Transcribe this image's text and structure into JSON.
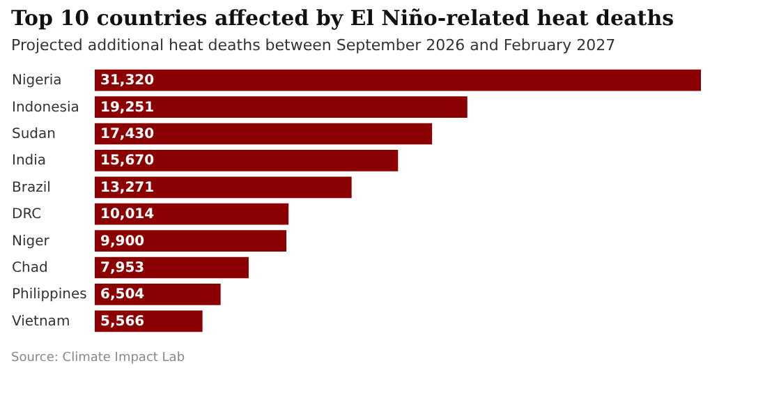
{
  "chart_data": {
    "type": "bar",
    "orientation": "horizontal",
    "title": "Top 10 countries affected by El Niño-related heat deaths",
    "subtitle": "Projected additional heat deaths between September 2026 and February 2027",
    "categories": [
      "Nigeria",
      "Indonesia",
      "Sudan",
      "India",
      "Brazil",
      "DRC",
      "Niger",
      "Chad",
      "Philippines",
      "Vietnam"
    ],
    "values": [
      31320,
      19251,
      17430,
      15670,
      13271,
      10014,
      9900,
      7953,
      6504,
      5566
    ],
    "value_labels": [
      "31,320",
      "19,251",
      "17,430",
      "15,670",
      "13,271",
      "10,014",
      "9,900",
      "7,953",
      "6,504",
      "5,566"
    ],
    "color": "#8b0000",
    "annotations": [
      "Source: Climate Impact Lab"
    ]
  }
}
